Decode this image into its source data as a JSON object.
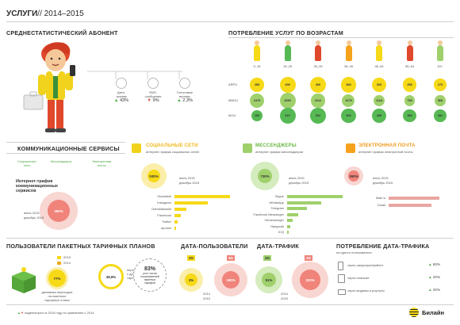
{
  "header": {
    "title": "УСЛУГИ",
    "years": "// 2014–2015"
  },
  "avg_subscriber": {
    "title": "СРЕДНЕСТАТИСТИЧЕСКИЙ АБОНЕНТ",
    "items": [
      {
        "label": "Дата-\nтрафик",
        "value": "43%",
        "dir": "up"
      },
      {
        "label": "SMS-\nсообщения",
        "value": "9%",
        "dir": "down"
      },
      {
        "label": "Голосовые\nвызовы",
        "value": "2,3%",
        "dir": "up"
      }
    ]
  },
  "ages": {
    "title": "ПОТРЕБЛЕНИЕ УСЛУГ ПО ВОЗРАСТАМ",
    "groups": [
      "0–18",
      "19–25",
      "26–35",
      "36–45",
      "46–54",
      "55–64",
      "64+"
    ],
    "rows": [
      {
        "name": "ARPU",
        "values": [
          "285",
          "408",
          "406",
          "368",
          "325",
          "258",
          "176"
        ],
        "color": "#f6d917"
      },
      {
        "name": "MBOU",
        "values": [
          "2479",
          "3355",
          "2222",
          "1679",
          "1118",
          "758",
          "568"
        ],
        "color": "#9fd06c"
      },
      {
        "name": "MOU",
        "values": [
          "155",
          "619",
          "602",
          "526",
          "459",
          "385",
          "281"
        ],
        "color": "#56b954"
      }
    ]
  },
  "comm": {
    "title": "КОММУНИКАЦИОННЫЕ СЕРВИСЫ",
    "categories": [
      "Социальные\nсети",
      "Мессенджеры",
      "Электронная\nпочта"
    ],
    "traffic_title": "Интернет-трафик\nкоммуникационных\nсервисов",
    "traffic_value": "350%",
    "legend_jul": "июль 2015",
    "legend_dec": "декабрь 2015"
  },
  "social": {
    "title": "СОЦИАЛЬНЫЕ СЕТИ",
    "subtitle": "интернет-трафик социальных сетей",
    "value": "530%",
    "legend_jul": "июль 2015",
    "legend_dec": "декабрь 2015",
    "items": [
      {
        "name": "Vkontakte",
        "v": 1.0
      },
      {
        "name": "Instagram",
        "v": 0.6
      },
      {
        "name": "Odnoklassniki",
        "v": 0.22
      },
      {
        "name": "Facebook",
        "v": 0.12
      },
      {
        "name": "Twitter",
        "v": 0.05
      },
      {
        "name": "прочие",
        "v": 0.03
      }
    ]
  },
  "messengers": {
    "title": "МЕССЕНДЖЕРЫ",
    "subtitle": "интернет-трафик мессенджеров",
    "value": "730%",
    "legend_jul": "июль 2015",
    "legend_dec": "декабрь 2015",
    "items": [
      {
        "name": "Skype",
        "v": 1.0
      },
      {
        "name": "WhatsApp",
        "v": 0.62
      },
      {
        "name": "Telegram",
        "v": 0.35
      },
      {
        "name": "Facebook Messenger",
        "v": 0.2
      },
      {
        "name": "Vkmessenger",
        "v": 0.1
      },
      {
        "name": "Hangouts",
        "v": 0.05
      },
      {
        "name": "ICQ",
        "v": 0.03
      }
    ]
  },
  "email": {
    "title": "ЭЛЕКТРОННАЯ ПОЧТА",
    "subtitle": "интернет-трафик электронной почты",
    "value": "260%",
    "legend_jul": "июль 2015",
    "legend_dec": "декабрь 2015",
    "items": [
      {
        "name": "Mail.ru",
        "v": 1.0
      },
      {
        "name": "Gmail",
        "v": 0.85
      }
    ]
  },
  "packages": {
    "title": "ПОЛЬЗОВАТЕЛИ ПАКЕТНЫХ ТАРИФНЫХ ПЛАНОВ",
    "year_a": "2015",
    "year_b": "2014",
    "value_a": "77%",
    "label_a": "динамика переходов\nна пакетные\nтарифные планы",
    "value_b": "48,9%",
    "label_b": "переходы\nс других\nтарифов",
    "value_c": "83%",
    "label_c": "рост числа\nпользователей\nпакетных\nтарифов"
  },
  "data_users": {
    "title": "ДАТА-ПОЛЬЗОВАТЕЛИ",
    "badge_3g": "3G",
    "badge_4g": "4G",
    "value_3g": "2%",
    "value_4g": "190%",
    "year_a": "2014",
    "year_b": "2015"
  },
  "data_traffic": {
    "title": "ДАТА-ТРАФИК",
    "badge_3g": "3G",
    "badge_4g": "4G",
    "value_3g": "51%",
    "value_4g": "322%",
    "year_a": "2014",
    "year_b": "2015"
  },
  "consumption": {
    "title": "ПОТРЕБЛЕНИЕ ДАТА-ТРАФИКА",
    "subtitle": "на одного пользователя",
    "items": [
      {
        "label": "через смартфон/фаблет",
        "value": "60%"
      },
      {
        "label": "через планшет",
        "value": "20%"
      },
      {
        "label": "через модемы и роутеры",
        "value": "20%"
      }
    ]
  },
  "footer": {
    "note": "падение/рост в 2015 году по сравнению с 2014",
    "brand": "Билайн"
  }
}
